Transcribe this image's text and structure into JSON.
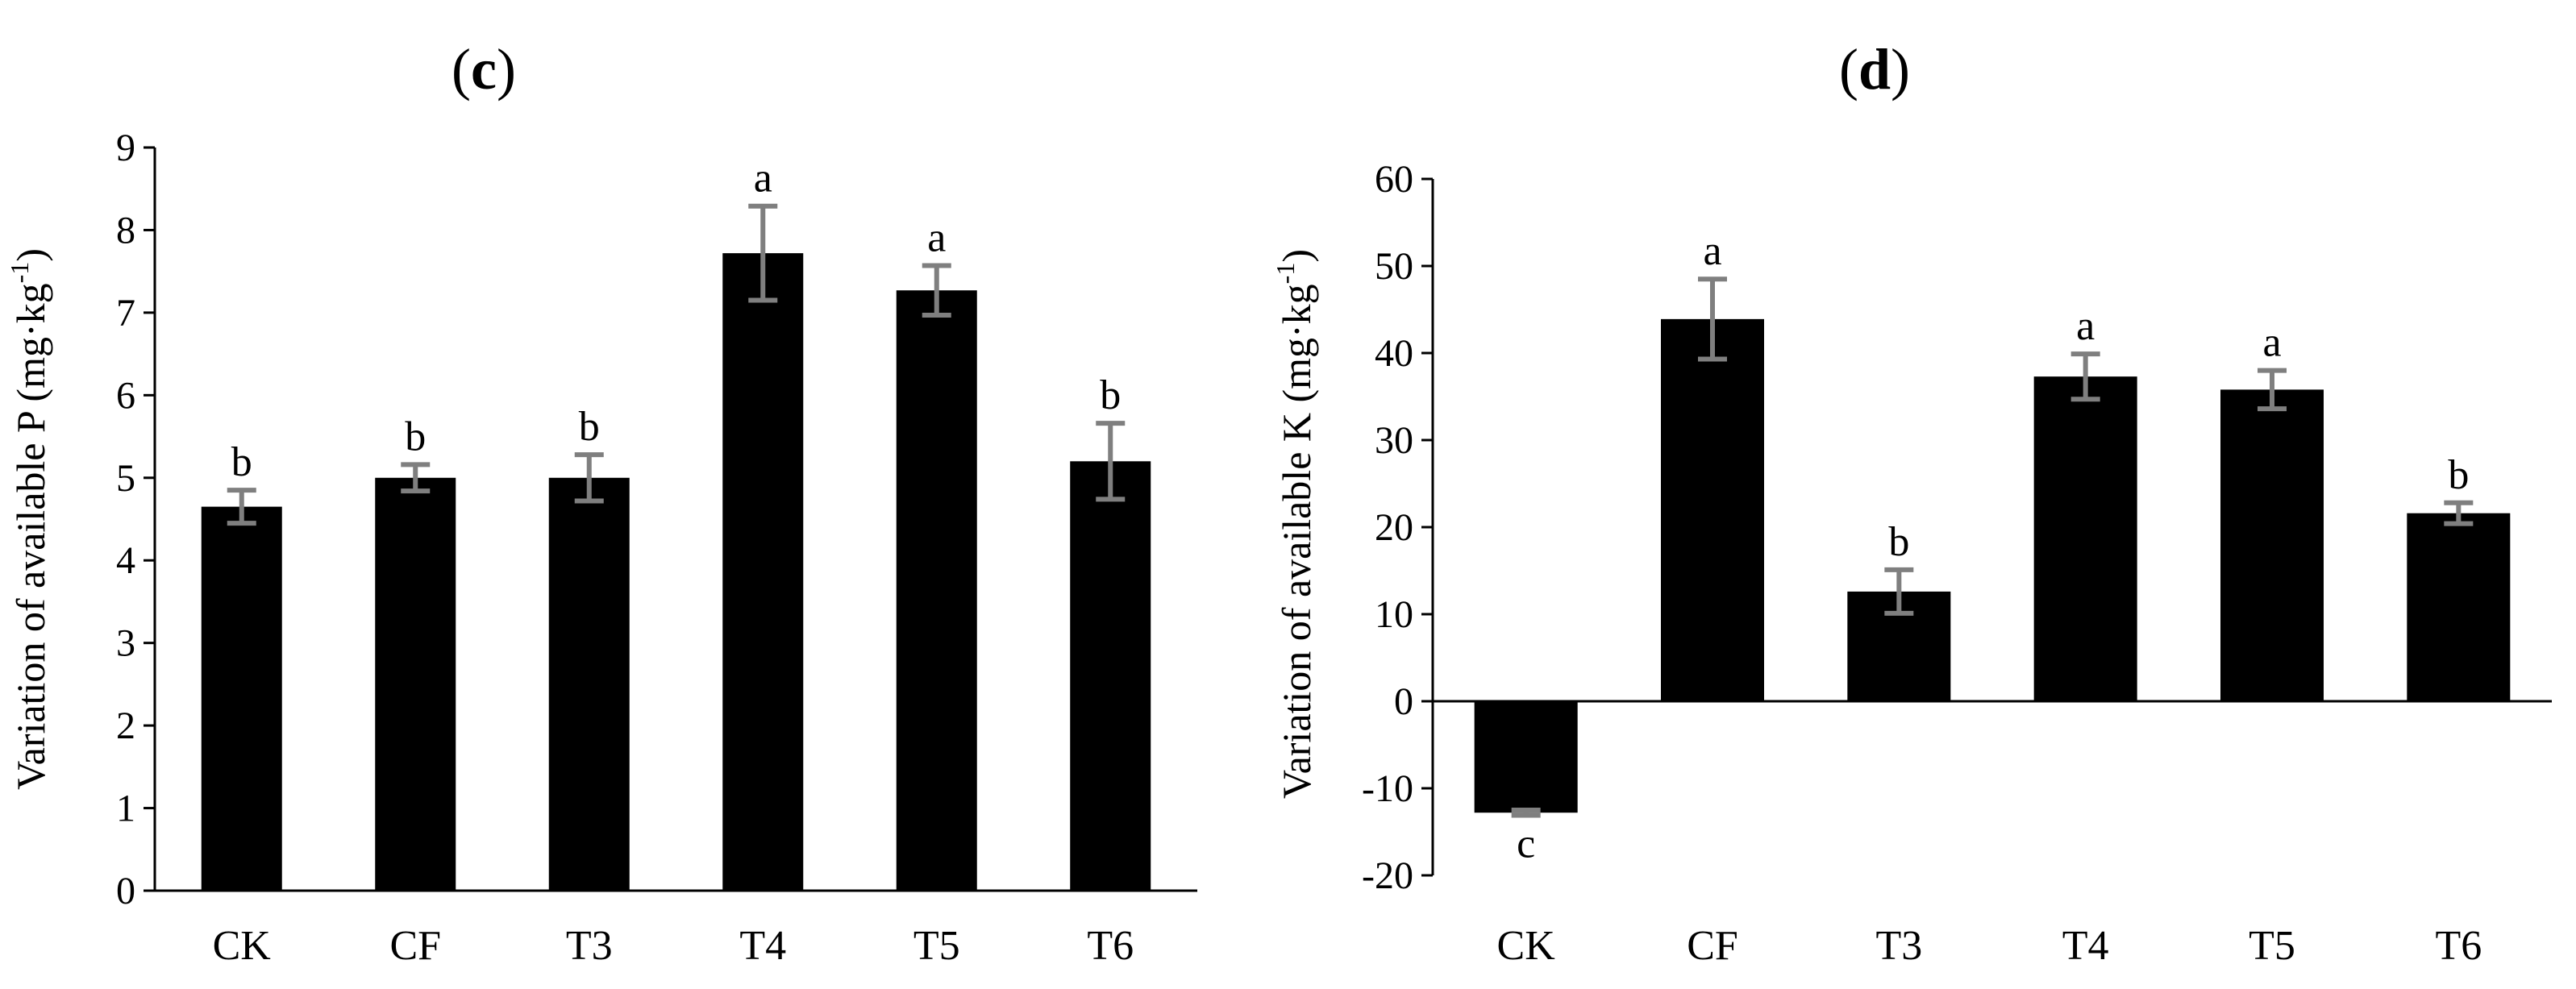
{
  "chart_data": [
    {
      "type": "bar",
      "panel": "c",
      "title_open": "(",
      "title_letter": "c",
      "title_close": ")",
      "ylabel_main": "Variation of available P (mg·kg",
      "ylabel_sup": "-1",
      "ylabel_end": ")",
      "xlabel": "",
      "ylim": [
        0,
        9
      ],
      "yticks": [
        0,
        1,
        2,
        3,
        4,
        5,
        6,
        7,
        8,
        9
      ],
      "categories": [
        "CK",
        "CF",
        "T3",
        "T4",
        "T5",
        "T6"
      ],
      "values": [
        4.65,
        5.0,
        5.0,
        7.72,
        7.27,
        5.2
      ],
      "errors": [
        0.2,
        0.16,
        0.28,
        0.57,
        0.3,
        0.46
      ],
      "significance": [
        "b",
        "b",
        "b",
        "a",
        "a",
        "b"
      ],
      "bar_color": "#000000",
      "error_color": "#7f7f7f"
    },
    {
      "type": "bar",
      "panel": "d",
      "title_open": "(",
      "title_letter": "d",
      "title_close": ")",
      "ylabel_main": "Variation of available K (mg·kg",
      "ylabel_sup": "-1",
      "ylabel_end": ")",
      "xlabel": "",
      "ylim": [
        -20,
        60
      ],
      "yticks": [
        -20,
        -10,
        0,
        10,
        20,
        30,
        40,
        50,
        60
      ],
      "categories": [
        "CK",
        "CF",
        "T3",
        "T4",
        "T5",
        "T6"
      ],
      "values": [
        -12.8,
        43.9,
        12.6,
        37.3,
        35.8,
        21.6
      ],
      "errors": [
        0.3,
        4.6,
        2.5,
        2.6,
        2.2,
        1.2
      ],
      "significance": [
        "c",
        "a",
        "b",
        "a",
        "a",
        "b"
      ],
      "bar_color": "#000000",
      "error_color": "#7f7f7f"
    }
  ]
}
